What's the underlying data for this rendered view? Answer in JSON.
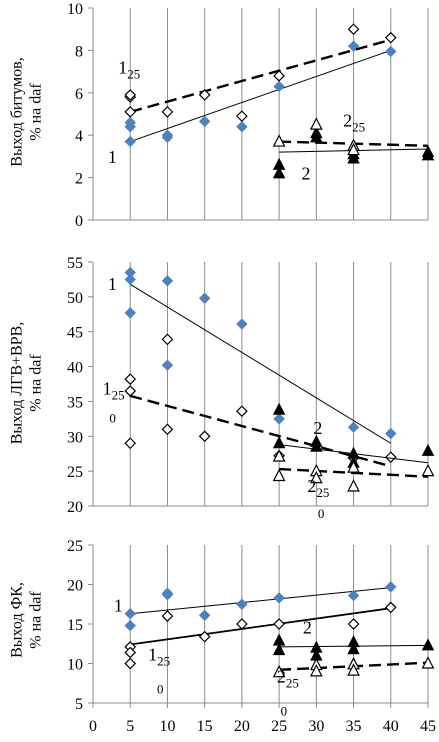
{
  "chart_data": [
    {
      "type": "scatter",
      "ylabel": "Выход битумов, % на daf",
      "xlim": [
        0,
        45
      ],
      "ylim": [
        0,
        10
      ],
      "yticks": [
        0,
        2,
        4,
        6,
        8,
        10
      ],
      "grid": "vertical",
      "series": [
        {
          "marker": "diamond-filled",
          "color": "#4f81bd",
          "points": [
            [
              5,
              3.7
            ],
            [
              5,
              4.4
            ],
            [
              5,
              4.6
            ],
            [
              10,
              3.9
            ],
            [
              10,
              4.0
            ],
            [
              15,
              4.65
            ],
            [
              20,
              4.4
            ],
            [
              25,
              6.3
            ],
            [
              35,
              8.2
            ],
            [
              40,
              7.95
            ]
          ],
          "trend": {
            "x": [
              5,
              40
            ],
            "y": [
              3.7,
              8.0
            ],
            "style": "solid"
          }
        },
        {
          "marker": "diamond-open",
          "color": "#000000",
          "points": [
            [
              5,
              5.1
            ],
            [
              5,
              5.8
            ],
            [
              5,
              5.9
            ],
            [
              10,
              5.1
            ],
            [
              15,
              5.9
            ],
            [
              20,
              4.9
            ],
            [
              25,
              6.8
            ],
            [
              35,
              9.0
            ],
            [
              40,
              8.6
            ]
          ],
          "trend": {
            "x": [
              5,
              40
            ],
            "y": [
              5.1,
              8.5
            ],
            "style": "dashed"
          }
        },
        {
          "marker": "triangle-filled",
          "color": "#000000",
          "points": [
            [
              25,
              2.2
            ],
            [
              25,
              2.6
            ],
            [
              30,
              3.9
            ],
            [
              30,
              4.1
            ],
            [
              35,
              2.9
            ],
            [
              35,
              3.1
            ],
            [
              45,
              3.05
            ],
            [
              45,
              3.2
            ]
          ],
          "trend": {
            "x": [
              25,
              45
            ],
            "y": [
              3.2,
              3.35
            ],
            "style": "solid"
          }
        },
        {
          "marker": "triangle-open",
          "color": "#000000",
          "points": [
            [
              25,
              3.7
            ],
            [
              30,
              4.5
            ],
            [
              35,
              3.5
            ],
            [
              35,
              3.3
            ]
          ],
          "trend": {
            "x": [
              25,
              45
            ],
            "y": [
              3.7,
              3.5
            ],
            "style": "dashed"
          }
        }
      ],
      "annotations": [
        {
          "base": "1",
          "sub": "25",
          "x": 3.4,
          "y": 6.9
        },
        {
          "base": "1",
          "sub": "",
          "x": 2.0,
          "y": 2.7
        },
        {
          "base": "2",
          "sub": "25",
          "x": 33.6,
          "y": 4.4
        },
        {
          "base": "2",
          "sub": "",
          "x": 28.0,
          "y": 1.9
        }
      ]
    },
    {
      "type": "scatter",
      "ylabel": "Выход ЛГВ+ВРВ, % на daf",
      "xlim": [
        0,
        45
      ],
      "ylim": [
        20,
        55
      ],
      "yticks": [
        20,
        25,
        30,
        35,
        40,
        45,
        50,
        55
      ],
      "grid": "vertical",
      "series": [
        {
          "marker": "diamond-filled",
          "color": "#4f81bd",
          "points": [
            [
              5,
              53.5
            ],
            [
              5,
              52.5
            ],
            [
              5,
              47.7
            ],
            [
              10,
              52.3
            ],
            [
              10,
              40.2
            ],
            [
              15,
              49.8
            ],
            [
              20,
              46.1
            ],
            [
              25,
              32.5
            ],
            [
              35,
              31.3
            ],
            [
              40,
              30.4
            ]
          ],
          "trend": {
            "x": [
              5,
              40
            ],
            "y": [
              51.8,
              29.0
            ],
            "style": "solid"
          }
        },
        {
          "marker": "diamond-open",
          "color": "#000000",
          "points": [
            [
              5,
              38.2
            ],
            [
              5,
              36.5
            ],
            [
              5,
              29.0
            ],
            [
              10,
              43.9
            ],
            [
              10,
              31.0
            ],
            [
              15,
              30.0
            ],
            [
              20,
              33.6
            ],
            [
              25,
              27.2
            ],
            [
              35,
              26.9
            ],
            [
              40,
              27.0
            ]
          ],
          "trend": {
            "x": [
              5,
              40
            ],
            "y": [
              35.8,
              25.7
            ],
            "style": "dashed"
          }
        },
        {
          "marker": "triangle-filled",
          "color": "#000000",
          "points": [
            [
              25,
              33.8
            ],
            [
              25,
              29.0
            ],
            [
              30,
              29.2
            ],
            [
              30,
              28.5
            ],
            [
              35,
              27.5
            ],
            [
              35,
              26.2
            ],
            [
              45,
              27.9
            ]
          ],
          "trend": {
            "x": [
              25,
              45
            ],
            "y": [
              28.8,
              26.2
            ],
            "style": "solid"
          }
        },
        {
          "marker": "triangle-open",
          "color": "#000000",
          "points": [
            [
              25,
              27.1
            ],
            [
              25,
              24.3
            ],
            [
              30,
              25.0
            ],
            [
              30,
              24.0
            ],
            [
              35,
              25.5
            ],
            [
              35,
              22.8
            ],
            [
              45,
              25.0
            ]
          ],
          "trend": {
            "x": [
              25,
              45
            ],
            "y": [
              25.3,
              24.2
            ],
            "style": "dashed"
          }
        }
      ],
      "annotations": [
        {
          "base": "1",
          "sub": "",
          "x": 2.0,
          "y": 51.0
        },
        {
          "base": "1",
          "sub": "25",
          "x": 1.3,
          "y": 36.0
        },
        {
          "base": "",
          "sub": "0",
          "x": 2.2,
          "y": 32.0
        },
        {
          "base": "2",
          "sub": "",
          "x": 29.6,
          "y": 30.3
        },
        {
          "base": "2",
          "sub": "25",
          "x": 28.8,
          "y": 22.0
        },
        {
          "base": "",
          "sub": "0",
          "x": 30.2,
          "y": 18.3
        }
      ]
    },
    {
      "type": "scatter",
      "ylabel": "Выход ФК, % на daf",
      "xlim": [
        0,
        45
      ],
      "ylim": [
        5,
        25
      ],
      "yticks": [
        5,
        10,
        15,
        20,
        25
      ],
      "xticks": [
        0,
        5,
        10,
        15,
        20,
        25,
        30,
        35,
        40,
        45
      ],
      "grid": "vertical",
      "series": [
        {
          "marker": "diamond-filled",
          "color": "#4f81bd",
          "points": [
            [
              5,
              16.3
            ],
            [
              5,
              14.8
            ],
            [
              10,
              18.7
            ],
            [
              10,
              18.9
            ],
            [
              15,
              16.1
            ],
            [
              20,
              17.5
            ],
            [
              25,
              18.3
            ],
            [
              35,
              18.6
            ],
            [
              40,
              19.7
            ]
          ],
          "trend": {
            "x": [
              5,
              40
            ],
            "y": [
              16.3,
              19.6
            ],
            "style": "solid"
          }
        },
        {
          "marker": "diamond-open",
          "color": "#000000",
          "points": [
            [
              5,
              12.1
            ],
            [
              5,
              11.4
            ],
            [
              5,
              10.0
            ],
            [
              10,
              16.0
            ],
            [
              15,
              13.4
            ],
            [
              20,
              15.0
            ],
            [
              25,
              15.0
            ],
            [
              35,
              15.0
            ],
            [
              40,
              17.1
            ]
          ],
          "trend": {
            "x": [
              5,
              40
            ],
            "y": [
              12.4,
              17.0
            ],
            "style": "solid-thick"
          }
        },
        {
          "marker": "triangle-filled",
          "color": "#000000",
          "points": [
            [
              25,
              12.9
            ],
            [
              25,
              11.7
            ],
            [
              30,
              12.0
            ],
            [
              30,
              11.0
            ],
            [
              35,
              12.7
            ],
            [
              35,
              11.8
            ],
            [
              45,
              12.3
            ]
          ],
          "trend": {
            "x": [
              25,
              45
            ],
            "y": [
              12.1,
              12.3
            ],
            "style": "solid"
          }
        },
        {
          "marker": "triangle-open",
          "color": "#000000",
          "points": [
            [
              25,
              8.9
            ],
            [
              30,
              9.8
            ],
            [
              30,
              9.0
            ],
            [
              35,
              9.9
            ],
            [
              35,
              9.1
            ],
            [
              45,
              10.0
            ]
          ],
          "trend": {
            "x": [
              25,
              45
            ],
            "y": [
              9.2,
              10.1
            ],
            "style": "dashed"
          }
        }
      ],
      "annotations": [
        {
          "base": "1",
          "sub": "",
          "x": 2.8,
          "y": 16.6
        },
        {
          "base": "1",
          "sub": "25",
          "x": 7.4,
          "y": 10.4
        },
        {
          "base": "",
          "sub": "0",
          "x": 8.6,
          "y": 6.2
        },
        {
          "base": "2",
          "sub": "",
          "x": 28.2,
          "y": 13.8
        },
        {
          "base": "2",
          "sub": "25",
          "x": 24.7,
          "y": 7.6
        },
        {
          "base": "",
          "sub": "0",
          "x": 25.2,
          "y": 3.4
        }
      ]
    }
  ]
}
